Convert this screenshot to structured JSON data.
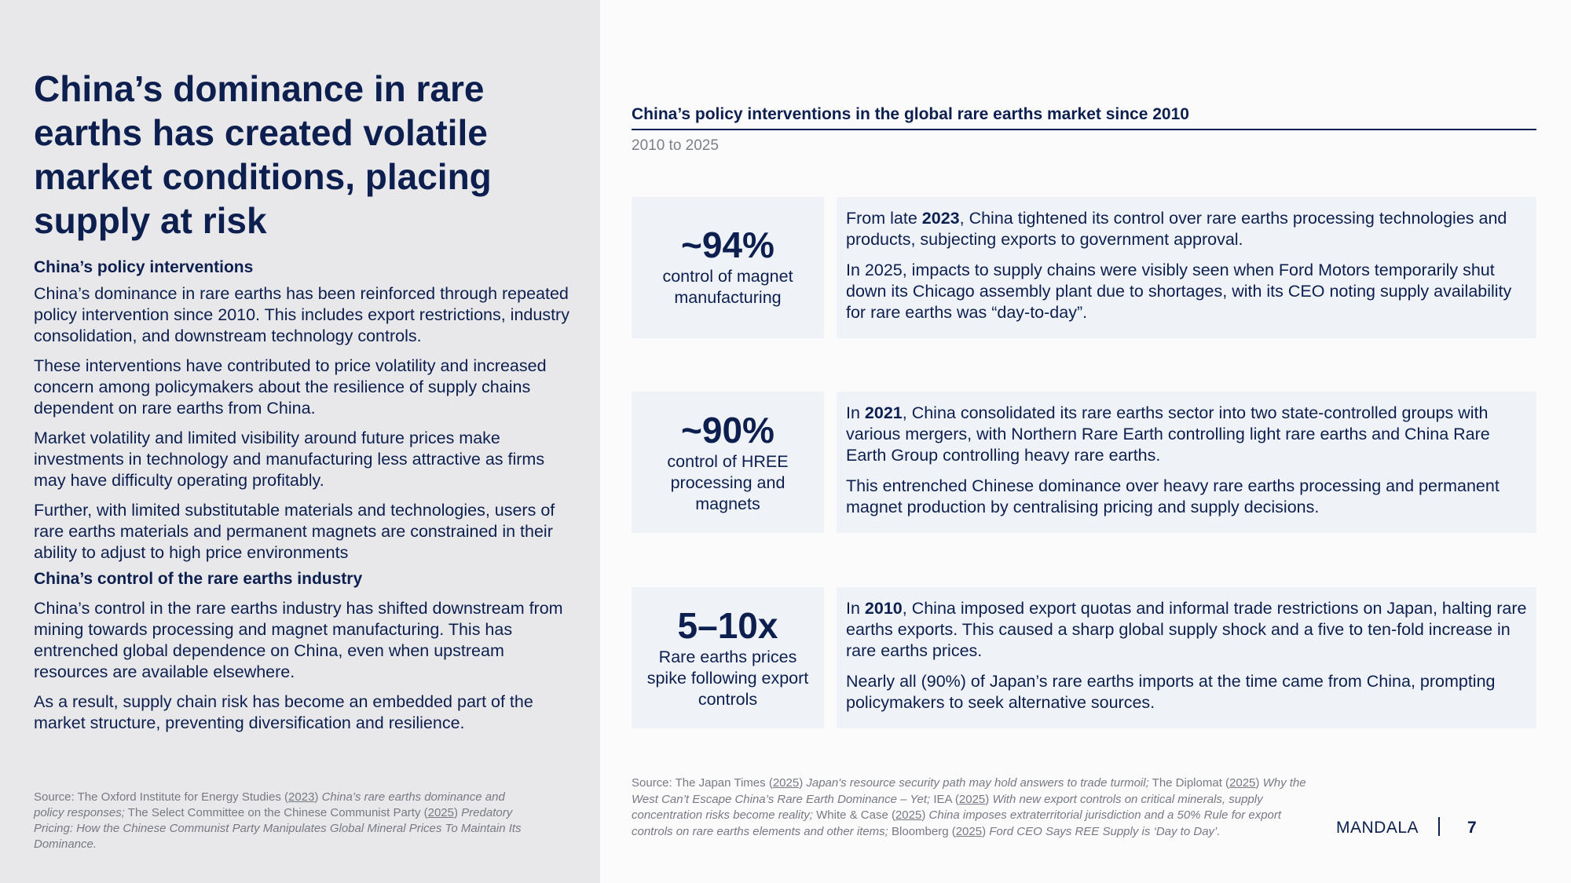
{
  "left": {
    "title": "China’s dominance in rare earths has created volatile market conditions, placing supply at risk",
    "sections": [
      {
        "heading": "China’s policy interventions",
        "paragraphs": [
          "China’s dominance in rare earths has been reinforced through repeated policy intervention since 2010. This includes export restrictions, industry consolidation, and downstream technology controls.",
          "These interventions have contributed to price volatility and increased concern among policymakers about the resilience of supply chains dependent on rare earths from China.",
          "Market volatility and limited visibility around future prices make investments in technology and manufacturing less attractive as firms may have difficulty operating profitably.",
          "Further, with limited substitutable materials and technologies, users of rare earths materials and permanent magnets are constrained in their ability to adjust to high price environments"
        ]
      },
      {
        "heading": "China’s control of the rare earths industry",
        "paragraphs": [
          "China’s control in the rare earths industry has shifted downstream from mining towards processing and magnet manufacturing. This has entrenched global dependence on China, even when upstream resources are available elsewhere.",
          "As a result, supply chain risk has become an embedded part of the market structure, preventing diversification and resilience."
        ]
      }
    ],
    "source": {
      "prefix": "Source: The Oxford Institute for Energy Studies (",
      "year1": "2023",
      "mid1": ") ",
      "title1": "China’s rare earths dominance and policy responses;",
      "mid2": " The Select Committee on the Chinese Communist Party (",
      "year2": "2025",
      "mid3": ") ",
      "title2": "Predatory Pricing: How the Chinese Communist Party Manipulates Global Mineral Prices To Maintain Its Dominance."
    }
  },
  "right": {
    "title": "China’s policy interventions in the global rare earths market since 2010",
    "subtitle": "2010 to 2025",
    "rows": [
      {
        "stat": "~94%",
        "label": "control of magnet manufacturing",
        "p1_pre": "From late ",
        "p1_bold": "2023",
        "p1_post": ", China tightened its control over rare earths processing technologies and products, subjecting exports to government approval.",
        "p2": "In 2025, impacts to supply chains were visibly seen when Ford Motors temporarily shut down its Chicago assembly plant due to shortages, with its CEO noting supply availability for rare earths was “day-to-day”."
      },
      {
        "stat": "~90%",
        "label": "control of HREE processing and magnets",
        "p1_pre": "In ",
        "p1_bold": "2021",
        "p1_post": ", China consolidated its rare earths sector into two state-controlled groups with various mergers, with Northern Rare Earth controlling light rare earths and China Rare Earth Group controlling heavy rare earths.",
        "p2": "This entrenched Chinese dominance over heavy rare earths processing and permanent magnet production by centralising pricing and supply decisions."
      },
      {
        "stat": "5–10x",
        "label": "Rare earths prices spike following export controls",
        "p1_pre": "In ",
        "p1_bold": "2010",
        "p1_post": ", China imposed export quotas and informal trade restrictions on Japan, halting rare earths exports. This caused a sharp global supply shock and a five to ten-fold increase in rare earths prices.",
        "p2": "Nearly all (90%) of Japan’s rare earths imports at the time came from China, prompting policymakers to seek alternative sources."
      }
    ],
    "source": {
      "s1": "Source: The Japan Times (",
      "y1": "2025",
      "s2": ") ",
      "t1": "Japan's resource security path may hold answers to trade turmoil;",
      "s3": " The Diplomat (",
      "y2": "2025",
      "s4": ") ",
      "t2": "Why the West Can’t Escape China’s Rare Earth Dominance – Yet;",
      "s5": " IEA (",
      "y3": "2025",
      "s6": ") ",
      "t3": "With new export controls on critical minerals, supply concentration risks become reality;",
      "s7": " White & Case (",
      "y4": "2025",
      "s8": ") ",
      "t4": "China imposes extraterritorial jurisdiction and a 50% Rule for export controls on rare earths elements and other items;",
      "s9": " Bloomberg (",
      "y5": "2025",
      "s10": ") ",
      "t5": "Ford CEO Says REE Supply is ‘Day to Day’."
    }
  },
  "footer": {
    "brand": "MANDALA",
    "page": "7"
  }
}
